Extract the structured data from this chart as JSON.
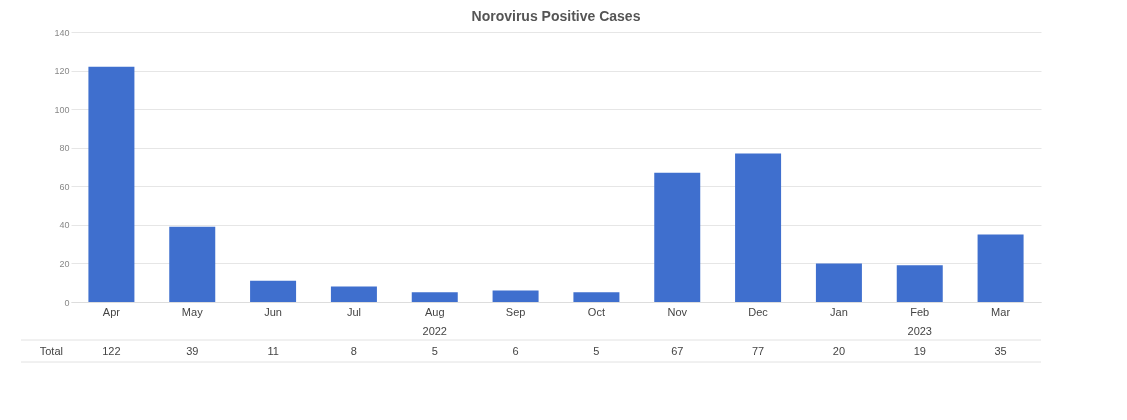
{
  "chart_data": {
    "type": "bar",
    "title": "Norovirus Positive Cases",
    "categories": [
      "Apr",
      "May",
      "Jun",
      "Jul",
      "Aug",
      "Sep",
      "Oct",
      "Nov",
      "Dec",
      "Jan",
      "Feb",
      "Mar"
    ],
    "series": [
      {
        "name": "Total",
        "color": "#3f6fce",
        "values": [
          122,
          39,
          11,
          8,
          5,
          6,
          5,
          67,
          77,
          20,
          19,
          35
        ]
      }
    ],
    "ylim": [
      0,
      140
    ],
    "yticks": [
      0,
      20,
      40,
      60,
      80,
      100,
      120,
      140
    ],
    "grid": "y",
    "data_labels": true,
    "annotations": [
      "2022",
      "2023"
    ]
  }
}
